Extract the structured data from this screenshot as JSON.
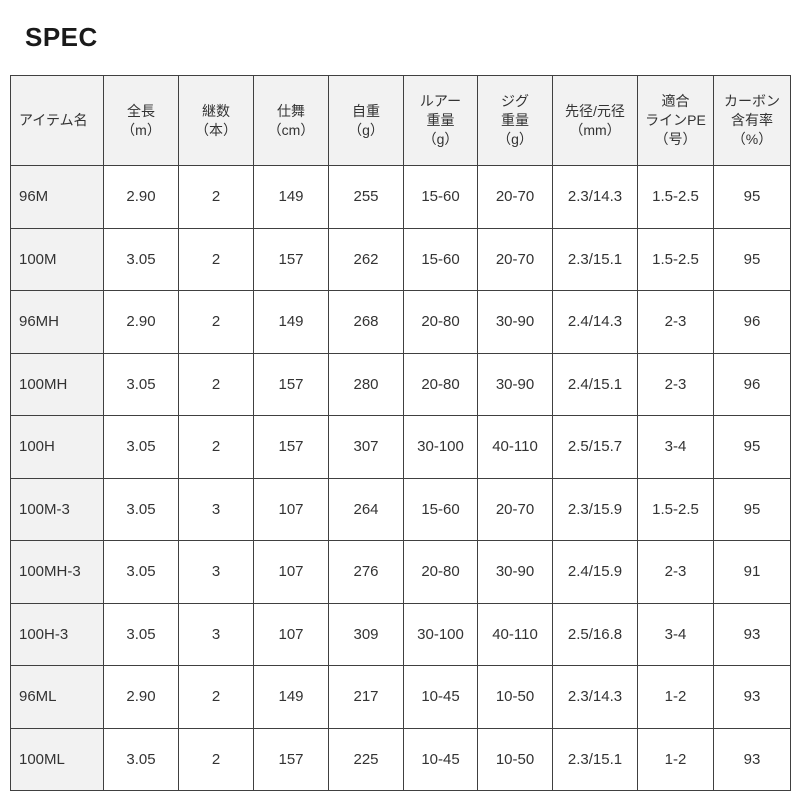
{
  "page": {
    "title": "SPEC"
  },
  "colors": {
    "header_bg": "#f2f2f2",
    "border": "#404040",
    "text": "#333333",
    "title_text": "#1a1a1a"
  },
  "table": {
    "columns": [
      "アイテム名",
      "全長\n（m）",
      "継数\n（本）",
      "仕舞\n（cm）",
      "自重\n（g）",
      "ルアー\n重量\n（g）",
      "ジグ\n重量\n（g）",
      "先径/元径\n（mm）",
      "適合\nラインPE\n（号）",
      "カーボン\n含有率\n（%）"
    ],
    "rows": [
      [
        "96M",
        "2.90",
        "2",
        "149",
        "255",
        "15-60",
        "20-70",
        "2.3/14.3",
        "1.5-2.5",
        "95"
      ],
      [
        "100M",
        "3.05",
        "2",
        "157",
        "262",
        "15-60",
        "20-70",
        "2.3/15.1",
        "1.5-2.5",
        "95"
      ],
      [
        "96MH",
        "2.90",
        "2",
        "149",
        "268",
        "20-80",
        "30-90",
        "2.4/14.3",
        "2-3",
        "96"
      ],
      [
        "100MH",
        "3.05",
        "2",
        "157",
        "280",
        "20-80",
        "30-90",
        "2.4/15.1",
        "2-3",
        "96"
      ],
      [
        "100H",
        "3.05",
        "2",
        "157",
        "307",
        "30-100",
        "40-110",
        "2.5/15.7",
        "3-4",
        "95"
      ],
      [
        "100M-3",
        "3.05",
        "3",
        "107",
        "264",
        "15-60",
        "20-70",
        "2.3/15.9",
        "1.5-2.5",
        "95"
      ],
      [
        "100MH-3",
        "3.05",
        "3",
        "107",
        "276",
        "20-80",
        "30-90",
        "2.4/15.9",
        "2-3",
        "91"
      ],
      [
        "100H-3",
        "3.05",
        "3",
        "107",
        "309",
        "30-100",
        "40-110",
        "2.5/16.8",
        "3-4",
        "93"
      ],
      [
        "96ML",
        "2.90",
        "2",
        "149",
        "217",
        "10-45",
        "10-50",
        "2.3/14.3",
        "1-2",
        "93"
      ],
      [
        "100ML",
        "3.05",
        "2",
        "157",
        "225",
        "10-45",
        "10-50",
        "2.3/15.1",
        "1-2",
        "93"
      ]
    ]
  }
}
